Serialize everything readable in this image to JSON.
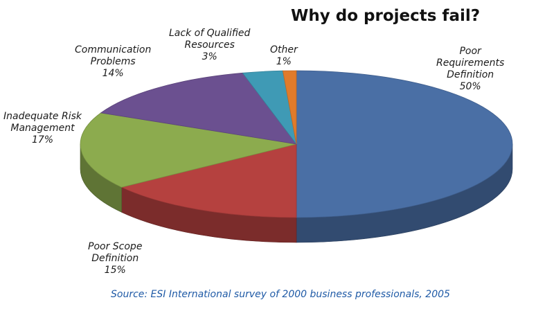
{
  "chart_data": {
    "type": "pie",
    "title": "Why do projects fail?",
    "source": "Source: ESI International survey of 2000 business professionals, 2005",
    "slices": [
      {
        "label_lines": [
          "Poor",
          "Requirements",
          "Definition"
        ],
        "value": 50,
        "value_label": "50%",
        "color": "#4a6fa5"
      },
      {
        "label_lines": [
          "Poor Scope",
          "Definition"
        ],
        "value": 15,
        "value_label": "15%",
        "color": "#b5413f"
      },
      {
        "label_lines": [
          "Inadequate Risk",
          "Management"
        ],
        "value": 17,
        "value_label": "17%",
        "color": "#8cab4e"
      },
      {
        "label_lines": [
          "Communication",
          "Problems"
        ],
        "value": 14,
        "value_label": "14%",
        "color": "#6b5090"
      },
      {
        "label_lines": [
          "Lack of Qualified",
          "Resources"
        ],
        "value": 3,
        "value_label": "3%",
        "color": "#3f9ab5"
      },
      {
        "label_lines": [
          "Other"
        ],
        "value": 1,
        "value_label": "1%",
        "color": "#e07b2b"
      }
    ],
    "style": "3d",
    "legend": "none"
  }
}
